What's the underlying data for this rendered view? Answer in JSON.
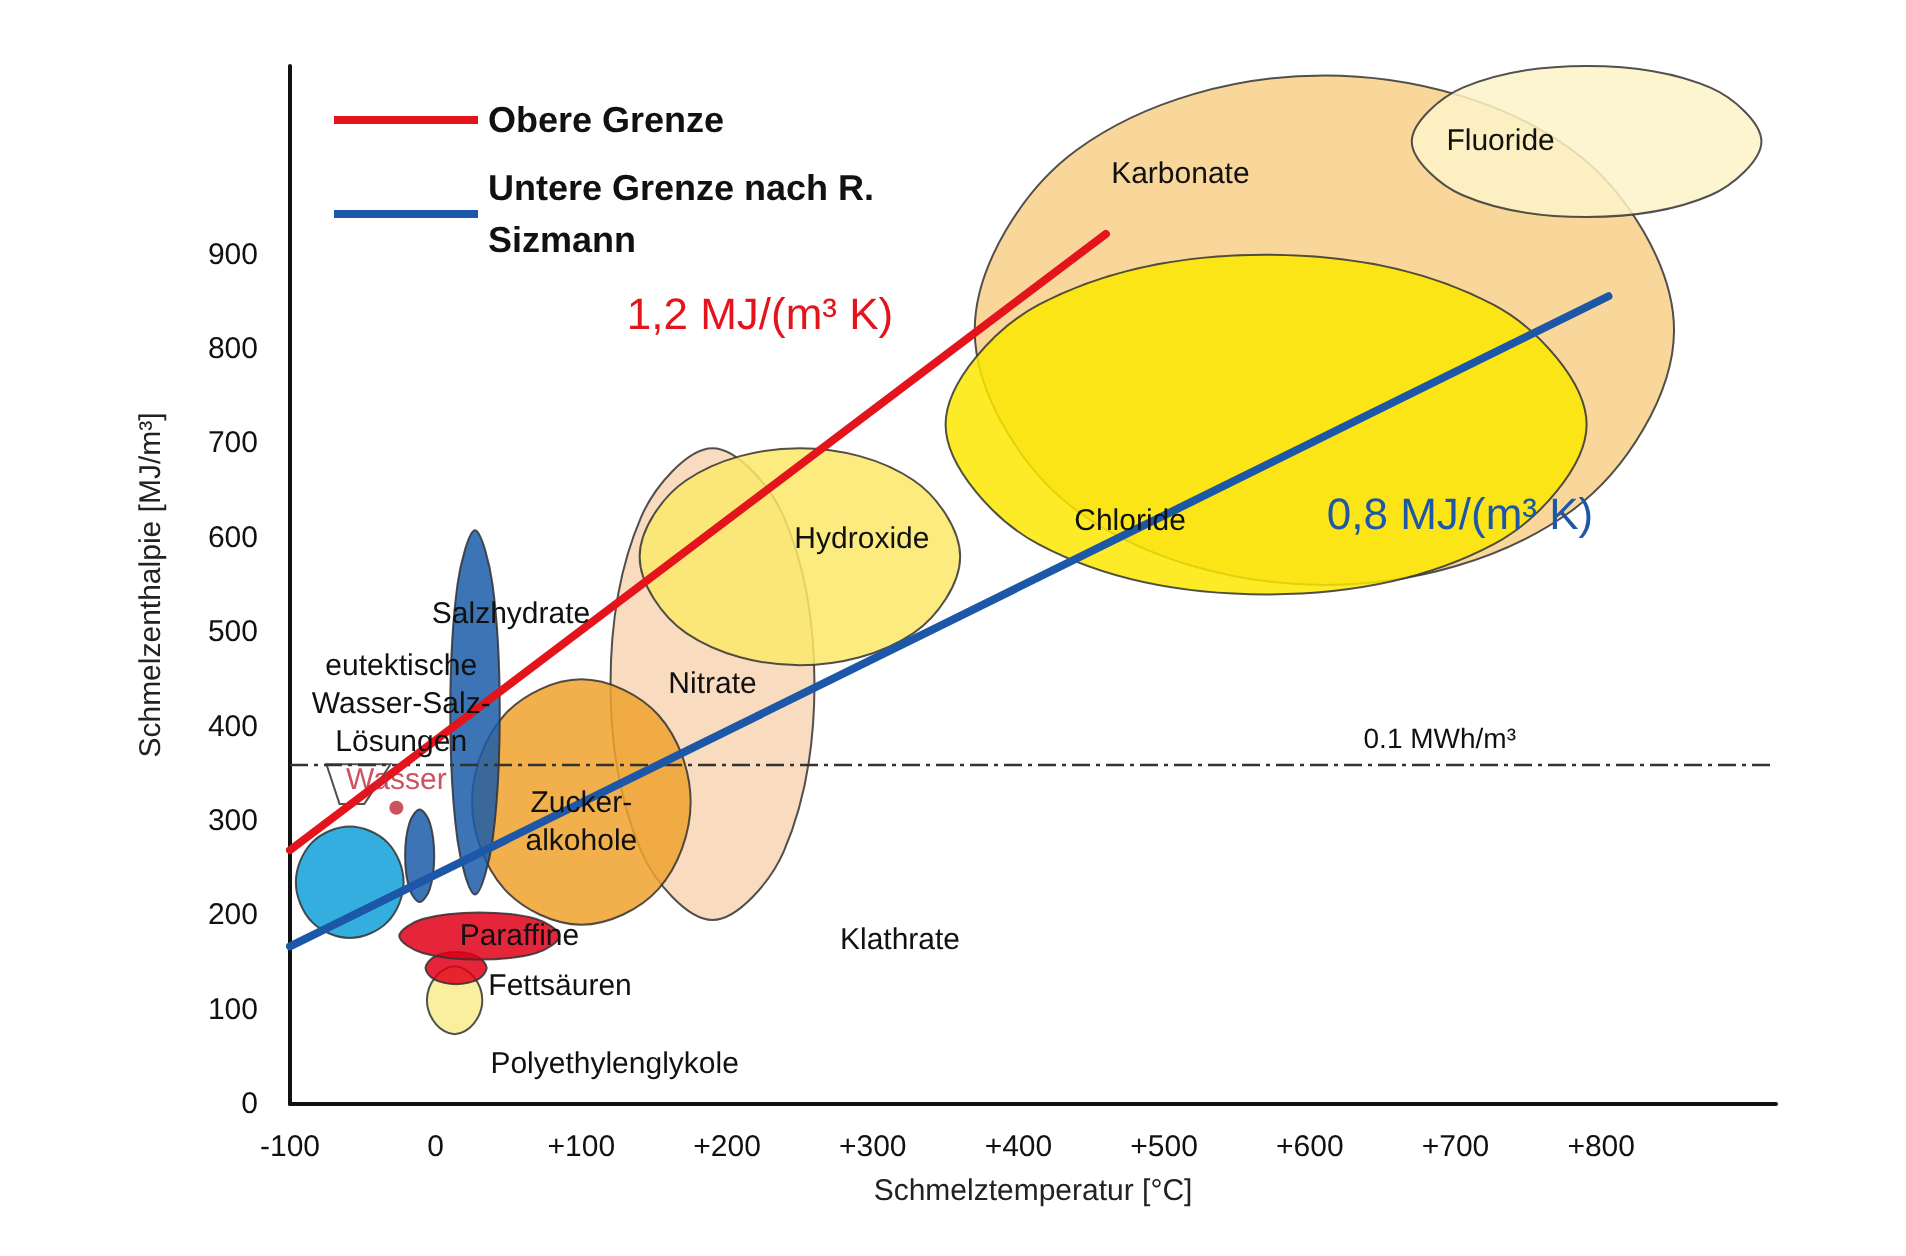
{
  "chart_data": {
    "type": "area",
    "xlabel": "Schmelztemperatur [°C]",
    "ylabel": "Schmelzenthalpie [MJ/m³]",
    "xlim": [
      -100,
      920
    ],
    "ylim": [
      0,
      1100
    ],
    "xticks": [
      -100,
      0,
      {
        "value": 100,
        "label": "+100"
      },
      {
        "value": 200,
        "label": "+200"
      },
      {
        "value": 300,
        "label": "+300"
      },
      {
        "value": 400,
        "label": "+400"
      },
      {
        "value": 500,
        "label": "+500"
      },
      {
        "value": 600,
        "label": "+600"
      },
      {
        "value": 700,
        "label": "+700"
      },
      {
        "value": 800,
        "label": "+800"
      }
    ],
    "yticks": [
      0,
      100,
      200,
      300,
      400,
      500,
      600,
      700,
      800,
      900
    ],
    "legend": "top left",
    "series": [
      {
        "name": "Karbonate",
        "color": "#f8d08a",
        "x": [
          850,
          780,
          610,
          440,
          370,
          440,
          610,
          780
        ],
        "values": [
          820,
          1011,
          1090,
          1011,
          820,
          629,
          550,
          629
        ]
      },
      {
        "name": "Fluoride",
        "color": "#fdf3c8",
        "x": [
          910,
          875,
          790,
          705,
          670,
          705,
          790,
          875
        ],
        "values": [
          1020,
          1077,
          1100,
          1077,
          1020,
          963,
          940,
          963
        ]
      },
      {
        "name": "Chloride",
        "color": "#fbe700",
        "x": [
          790,
          726,
          570,
          414,
          350,
          414,
          570,
          726
        ],
        "values": [
          720,
          847,
          900,
          847,
          720,
          593,
          540,
          593
        ]
      },
      {
        "name": "Nitrate",
        "color": "#f8d6b4",
        "x": [
          260,
          239,
          190,
          141,
          120,
          141,
          190,
          239
        ],
        "values": [
          445,
          622,
          695,
          622,
          445,
          268,
          195,
          268
        ]
      },
      {
        "name": "Hydroxide",
        "color": "#fbe96a",
        "x": [
          360,
          328,
          250,
          172,
          140,
          172,
          250,
          328
        ],
        "values": [
          580,
          661,
          695,
          661,
          580,
          499,
          465,
          499
        ]
      },
      {
        "name": "Zucker-\nalkohole",
        "color": "#f0a22e",
        "x": [
          175,
          153,
          100,
          47,
          25,
          47,
          100,
          153
        ],
        "values": [
          320,
          412,
          450,
          412,
          320,
          228,
          190,
          228
        ]
      },
      {
        "name": "Salzhydrate",
        "color": "#1a5ca8",
        "x": [
          44,
          39,
          27,
          15,
          10,
          15,
          27,
          39
        ],
        "values": [
          415,
          551,
          608,
          551,
          415,
          279,
          222,
          279
        ]
      },
      {
        "color": "#0fa0d8",
        "x": [
          -22,
          -33,
          -59,
          -85,
          -96,
          -85,
          -59,
          -33
        ],
        "values": [
          235,
          277,
          294,
          277,
          235,
          193,
          176,
          193
        ]
      },
      {
        "color": "#1a5ca8",
        "x": [
          -1,
          -4,
          -11,
          -18,
          -21,
          -18,
          -11,
          -4
        ],
        "values": [
          263,
          298,
          312,
          298,
          263,
          228,
          214,
          228
        ]
      },
      {
        "name": "eutektische\nWasser-Salz-\nLösungen",
        "color": "#ffffff",
        "x": [
          -75,
          -31,
          -49,
          -66
        ],
        "values": [
          360,
          360,
          318,
          318
        ]
      },
      {
        "name": "Polyethylenglykole",
        "color": "#f9ec8e",
        "x": [
          32,
          26,
          13,
          0,
          -6,
          0,
          13,
          26
        ],
        "values": [
          110,
          135,
          146,
          135,
          110,
          85,
          74,
          85
        ]
      },
      {
        "name": "Fettsäuren",
        "color": "#e00018",
        "x": [
          35,
          29,
          14,
          -1,
          -7,
          -1,
          14,
          29
        ],
        "values": [
          144,
          156,
          161,
          156,
          144,
          132,
          127,
          132
        ]
      },
      {
        "name": "Paraffine",
        "color": "#e00018",
        "x": [
          85,
          69,
          30,
          -9,
          -25,
          -9,
          30,
          69
        ],
        "values": [
          178,
          196,
          203,
          196,
          178,
          160,
          153,
          160
        ]
      },
      {
        "type": "scatter",
        "name": "Wasser",
        "color": "#c0283a",
        "marker": "circle",
        "x": [
          -27
        ],
        "values": [
          314
        ]
      },
      {
        "type": "line",
        "name": "Obere Grenze",
        "color": "#e3141b",
        "x": [
          -100,
          460
        ],
        "values": [
          269,
          922
        ]
      },
      {
        "type": "line",
        "name": "Untere Grenze nach R. Sizmann",
        "color": "#1d57a8",
        "x": [
          -100,
          805
        ],
        "values": [
          167,
          856
        ]
      }
    ],
    "ref_lines": [
      {
        "axis": "y",
        "value": 360,
        "label": "0.1 MWh/m³",
        "color": "#333333",
        "line_style": "dashed"
      }
    ],
    "annotations": [
      "1,2 MJ/(m³ K)",
      "0,8 MJ/(m³ K)",
      "Klathrate"
    ]
  }
}
